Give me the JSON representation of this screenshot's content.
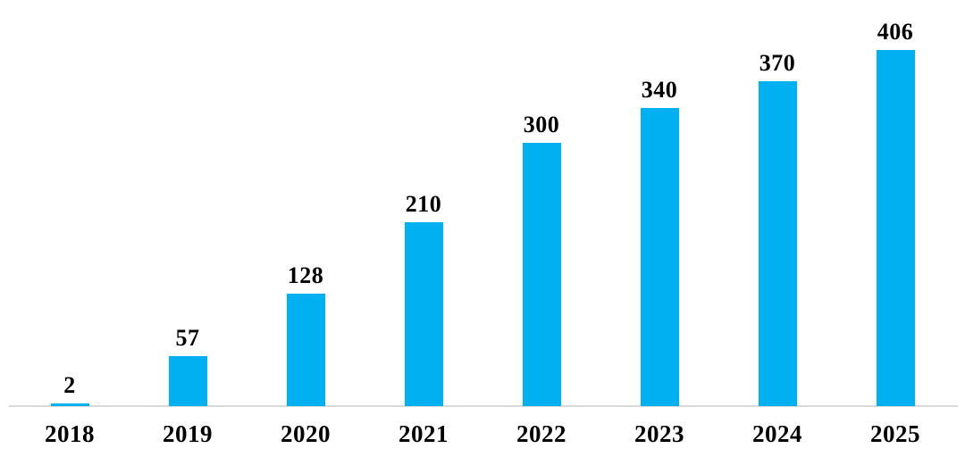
{
  "chart_data": {
    "type": "bar",
    "title": "",
    "xlabel": "",
    "ylabel": "",
    "categories": [
      "2018",
      "2019",
      "2020",
      "2021",
      "2022",
      "2023",
      "2024",
      "2025"
    ],
    "values": [
      2,
      57,
      128,
      210,
      300,
      340,
      370,
      406
    ],
    "data_labels": true,
    "ylim": [
      0,
      406
    ],
    "grid": false,
    "legend": false,
    "bar_color": "#00B0F0",
    "axis_line_color": "#D9D9D9",
    "label_color": "#000000"
  }
}
